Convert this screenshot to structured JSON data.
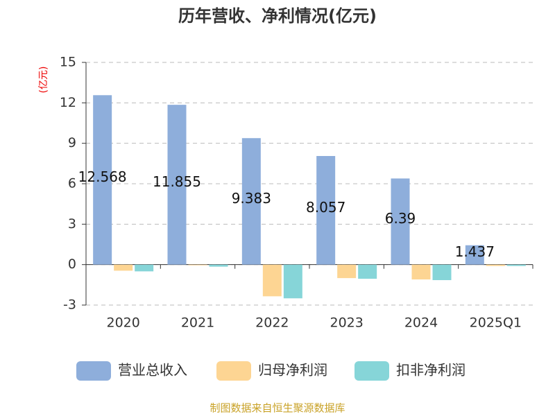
{
  "chart_data": {
    "type": "bar",
    "title": "历年营收、净利情况(亿元)",
    "y_label": "(亿元)",
    "source": "制图数据来自恒生聚源数据库",
    "categories": [
      "2020",
      "2021",
      "2022",
      "2023",
      "2024",
      "2025Q1"
    ],
    "series": [
      {
        "name": "营业总收入",
        "color": "#8eaedb",
        "values": [
          12.568,
          11.855,
          9.383,
          8.057,
          6.39,
          1.437
        ],
        "show_labels": true
      },
      {
        "name": "归母净利润",
        "color": "#fdd593",
        "values": [
          -0.45,
          -0.05,
          -2.35,
          -1.0,
          -1.1,
          -0.1
        ]
      },
      {
        "name": "扣非净利润",
        "color": "#86d5d8",
        "values": [
          -0.5,
          -0.15,
          -2.5,
          -1.05,
          -1.15,
          -0.1
        ]
      }
    ],
    "ylim": [
      -3,
      15
    ],
    "yticks": [
      -3,
      0,
      3,
      6,
      9,
      12,
      15
    ],
    "grid": true
  }
}
